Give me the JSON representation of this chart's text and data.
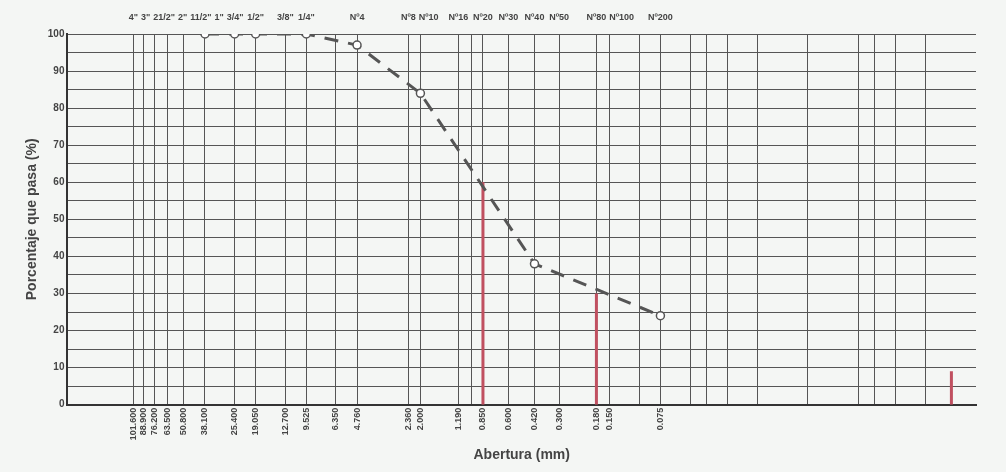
{
  "chart_data": {
    "type": "line",
    "xlabel": "Abertura (mm)",
    "ylabel": "Porcentaje que pasa (%)",
    "log": "x",
    "grid": true,
    "legend": false,
    "xlim": [
      250,
      0.001
    ],
    "ylim": [
      0,
      100
    ],
    "xticks": [
      {
        "value": 101.6,
        "label": "101.600"
      },
      {
        "value": 88.9,
        "label": "88.900"
      },
      {
        "value": 76.2,
        "label": "76.200"
      },
      {
        "value": 63.5,
        "label": "63.500"
      },
      {
        "value": 50.8,
        "label": "50.800"
      },
      {
        "value": 38.1,
        "label": "38.100"
      },
      {
        "value": 25.4,
        "label": "25.400"
      },
      {
        "value": 19.05,
        "label": "19.050"
      },
      {
        "value": 12.7,
        "label": "12.700"
      },
      {
        "value": 9.525,
        "label": "9.525"
      },
      {
        "value": 6.35,
        "label": "6.350"
      },
      {
        "value": 4.76,
        "label": "4.760"
      },
      {
        "value": 2.36,
        "label": "2.360"
      },
      {
        "value": 2,
        "label": "2.000"
      },
      {
        "value": 1.19,
        "label": "1.190"
      },
      {
        "value": 0.85,
        "label": "0.850"
      },
      {
        "value": 0.6,
        "label": "0.600"
      },
      {
        "value": 0.42,
        "label": "0.420"
      },
      {
        "value": 0.3,
        "label": "0.300"
      },
      {
        "value": 0.18,
        "label": "0.180"
      },
      {
        "value": 0.15,
        "label": "0.150"
      },
      {
        "value": 0.075,
        "label": "0.075"
      },
      {
        "value": 1,
        "label": null
      },
      {
        "value": 0.1,
        "label": null
      },
      {
        "value": 0.05,
        "label": null
      },
      {
        "value": 0.04,
        "label": null
      },
      {
        "value": 0.03,
        "label": null
      },
      {
        "value": 0.02,
        "label": null
      },
      {
        "value": 0.01,
        "label": null
      },
      {
        "value": 0.005,
        "label": null
      },
      {
        "value": 0.004,
        "label": null
      },
      {
        "value": 0.003,
        "label": null
      },
      {
        "value": 0.002,
        "label": null
      }
    ],
    "annotations": [
      "4\"",
      "3\"",
      "21/2\"",
      "2\"",
      "11/2\"",
      "1\"",
      "3/4\"",
      "1/2\"",
      "3/8\"",
      "1/4\"",
      "Nº4",
      "Nº8",
      "Nº10",
      "Nº16",
      "Nº20",
      "Nº30",
      "Nº40",
      "Nº50",
      "Nº80",
      "Nº100",
      "Nº200"
    ],
    "yticks": [
      0,
      {
        "value": 5,
        "label": null
      },
      10,
      {
        "value": 15,
        "label": null
      },
      20,
      {
        "value": 25,
        "label": null
      },
      30,
      {
        "value": 35,
        "label": null
      },
      40,
      {
        "value": 45,
        "label": null
      },
      50,
      {
        "value": 55,
        "label": null
      },
      60,
      {
        "value": 65,
        "label": null
      },
      70,
      {
        "value": 75,
        "label": null
      },
      80,
      {
        "value": 85,
        "label": null
      },
      90,
      {
        "value": 95,
        "label": null
      },
      100
    ],
    "series": [
      {
        "type": "line",
        "color": "#555555",
        "line_style": "dashed",
        "marker": "circle",
        "x": [
          38.1,
          25.4,
          19.05,
          9.525,
          4.76,
          2,
          0.42,
          0.075
        ],
        "values": [
          100,
          100,
          100,
          100,
          97,
          84,
          38,
          24
        ]
      },
      {
        "type": "line",
        "color": "#c05060",
        "line_style": "solid",
        "x": [
          0.85,
          0.85
        ],
        "values": [
          0,
          60
        ]
      },
      {
        "type": "line",
        "color": "#c05060",
        "line_style": "solid",
        "x": [
          0.18,
          0.18
        ],
        "values": [
          0,
          30
        ]
      },
      {
        "type": "line",
        "color": "#c05060",
        "line_style": "solid",
        "x": [
          0.0014,
          0.0014
        ],
        "values": [
          0,
          9
        ]
      }
    ]
  }
}
